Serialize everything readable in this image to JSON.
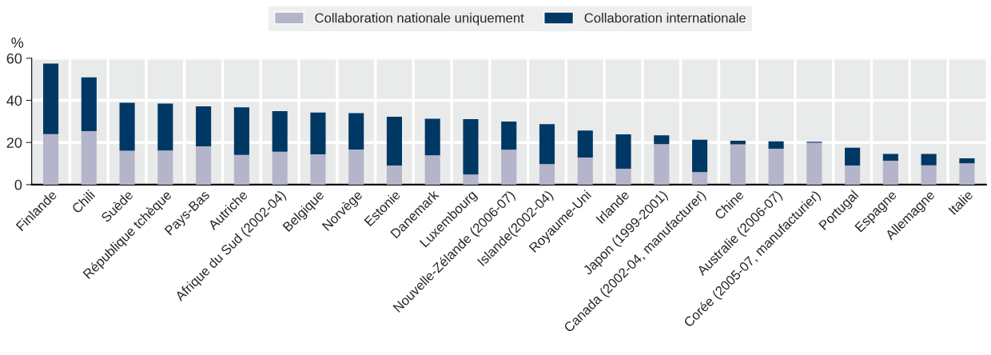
{
  "chart_data": {
    "type": "bar",
    "stacked": true,
    "ylabel": "%",
    "categories": [
      "Finlande",
      "Chili",
      "Suède",
      "République tchèque",
      "Pays-Bas",
      "Autriche",
      "Afrique du Sud (2002-04)",
      "Belgique",
      "Norvège",
      "Estonie",
      "Danemark",
      "Luxembourg",
      "Nouvelle-Zélande (2006-07)",
      "Islande(2002-04)",
      "Royaume-Uni",
      "Irlande",
      "Japon (1999-2001)",
      "Canada (2002-04, manufacturer)",
      "Chine",
      "Australie (2006-07)",
      "Corée (2005-07, manufacturier)",
      "Portugal",
      "Espagne",
      "Allemagne",
      "Italie"
    ],
    "series": [
      {
        "name": "Collaboration nationale uniquement",
        "color": "#b4b5ca",
        "values": [
          24.0,
          25.4,
          16.1,
          16.2,
          18.2,
          14.1,
          15.6,
          14.4,
          16.7,
          9.1,
          13.9,
          4.8,
          16.6,
          9.7,
          12.9,
          7.5,
          19.2,
          5.9,
          19.1,
          17.0,
          19.9,
          9.1,
          11.3,
          9.2,
          10.1
        ]
      },
      {
        "name": "Collaboration internationale",
        "color": "#003865",
        "values": [
          33.5,
          25.5,
          22.8,
          22.3,
          19.0,
          22.6,
          19.3,
          19.8,
          17.2,
          23.1,
          17.4,
          26.3,
          13.3,
          19.0,
          12.8,
          16.4,
          4.2,
          15.4,
          1.7,
          3.5,
          0.5,
          8.4,
          3.3,
          5.4,
          2.4
        ]
      }
    ],
    "ylim": [
      0,
      60
    ],
    "yticks": [
      0,
      20,
      40,
      60
    ],
    "grid": true,
    "legend": "top"
  }
}
